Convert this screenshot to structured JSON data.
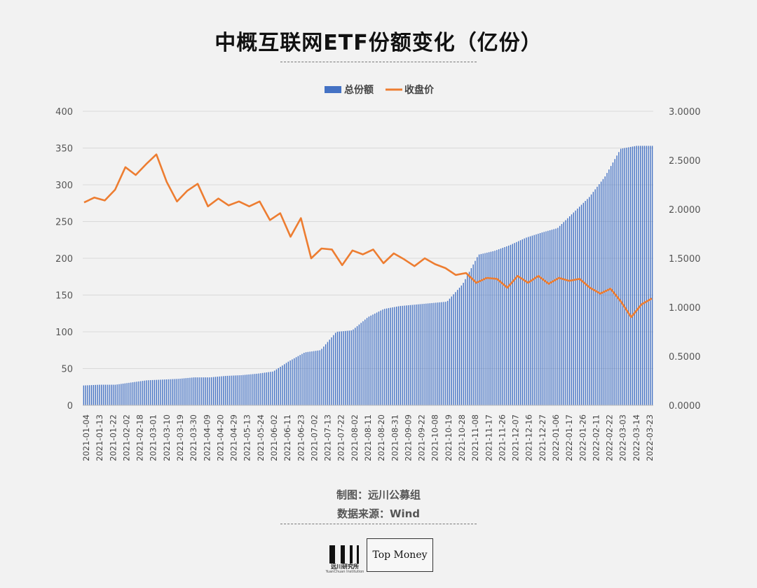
{
  "chart_data": {
    "type": "bar+line",
    "title": "中概互联网ETF份额变化（亿份）",
    "legend": [
      {
        "name": "总份额",
        "color": "#4472c4",
        "kind": "bar"
      },
      {
        "name": "收盘价",
        "color": "#ed7d31",
        "kind": "line"
      }
    ],
    "legend_position": "top-center",
    "y_left": {
      "min": 0,
      "max": 400,
      "ticks": [
        "0",
        "50",
        "100",
        "150",
        "200",
        "250",
        "300",
        "350",
        "400"
      ]
    },
    "y_right": {
      "min": 0,
      "max": 3,
      "ticks": [
        "0.0000",
        "0.5000",
        "1.0000",
        "1.5000",
        "2.0000",
        "2.5000",
        "3.0000"
      ]
    },
    "grid": true,
    "x_tick_labels": [
      "2021-01-04",
      "2021-01-13",
      "2021-01-22",
      "2021-02-02",
      "2021-02-18",
      "2021-03-01",
      "2021-03-10",
      "2021-03-19",
      "2021-03-30",
      "2021-04-09",
      "2021-04-20",
      "2021-04-29",
      "2021-05-13",
      "2021-05-24",
      "2021-06-02",
      "2021-06-11",
      "2021-06-23",
      "2021-07-02",
      "2021-07-13",
      "2021-07-22",
      "2021-08-02",
      "2021-08-11",
      "2021-08-20",
      "2021-08-31",
      "2021-09-09",
      "2021-09-22",
      "2021-10-08",
      "2021-10-19",
      "2021-10-28",
      "2021-11-08",
      "2021-11-17",
      "2021-11-26",
      "2021-12-07",
      "2021-12-16",
      "2021-12-27",
      "2022-01-06",
      "2022-01-17",
      "2022-01-26",
      "2022-02-11",
      "2022-02-22",
      "2022-03-03",
      "2022-03-14",
      "2022-03-23"
    ],
    "series": [
      {
        "name": "总份额",
        "axis": "left",
        "values": [
          27,
          28,
          28,
          31,
          34,
          35,
          36,
          38,
          38,
          40,
          41,
          43,
          46,
          60,
          72,
          75,
          100,
          102,
          120,
          131,
          135,
          137,
          139,
          141,
          165,
          205,
          210,
          218,
          228,
          235,
          241,
          262,
          283,
          311,
          349,
          353,
          353
        ]
      },
      {
        "name": "收盘价",
        "axis": "right",
        "values": [
          2.07,
          2.12,
          2.09,
          2.2,
          2.43,
          2.35,
          2.46,
          2.56,
          2.28,
          2.08,
          2.19,
          2.26,
          2.03,
          2.11,
          2.04,
          2.08,
          2.03,
          2.08,
          1.89,
          1.96,
          1.72,
          1.91,
          1.5,
          1.6,
          1.59,
          1.43,
          1.58,
          1.54,
          1.59,
          1.45,
          1.55,
          1.49,
          1.42,
          1.5,
          1.44,
          1.4,
          1.33,
          1.35,
          1.25,
          1.3,
          1.29,
          1.2,
          1.32,
          1.25,
          1.32,
          1.24,
          1.3,
          1.27,
          1.29,
          1.2,
          1.14,
          1.19,
          1.06,
          0.9,
          1.03,
          1.09
        ]
      }
    ]
  },
  "credits": {
    "made_by": "制图：远川公募组",
    "source": "数据来源：Wind"
  },
  "brand": {
    "name": "远川研究所",
    "sub": "YuanChuan Institution",
    "partner": "Top Money"
  }
}
